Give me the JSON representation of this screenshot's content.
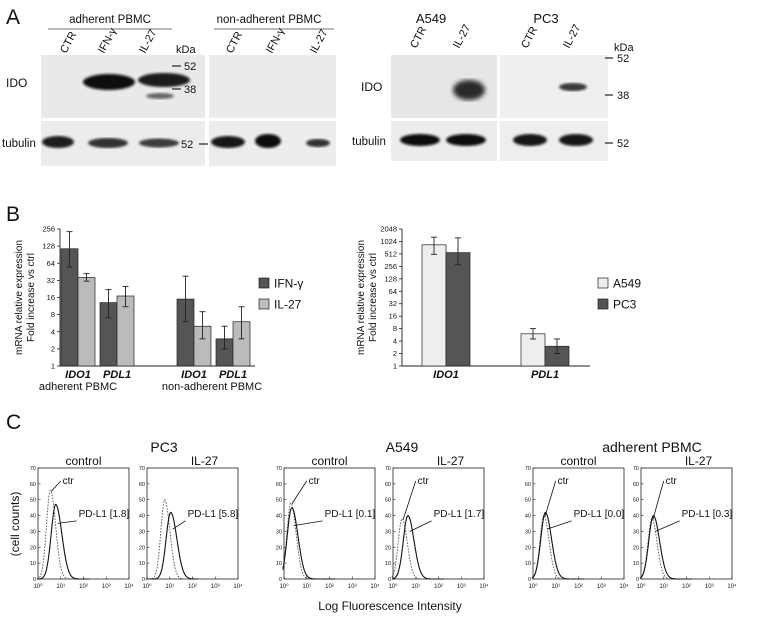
{
  "panels": {
    "a": "A",
    "b": "B",
    "c": "C"
  },
  "panel_a": {
    "blot1": {
      "group_left": "adherent PBMC",
      "group_right": "non-adherent PBMC",
      "lanes": [
        "CTR",
        "IFN-γ",
        "IL-27",
        "CTR",
        "IFN-γ",
        "IL-27"
      ],
      "row_labels": [
        "IDO",
        "tubulin"
      ],
      "kda_title": "kDa",
      "markers": [
        "52",
        "38",
        "52"
      ]
    },
    "blot2": {
      "group_left": "A549",
      "group_right": "PC3",
      "lanes": [
        "CTR",
        "IL-27",
        "CTR",
        "IL-27"
      ],
      "row_labels": [
        "IDO",
        "tubulin"
      ],
      "kda_title": "kDa",
      "markers": [
        "52",
        "38",
        "52"
      ]
    }
  },
  "chart_data": [
    {
      "type": "bar",
      "yscale": "log2",
      "ylabel": "mRNA relative expression\nFold increase vs ctrl",
      "yticks": [
        "1",
        "2",
        "4",
        "8",
        "16",
        "32",
        "64",
        "128",
        "256"
      ],
      "ylim": [
        1,
        256
      ],
      "categories": [
        "IDO1",
        "PDL1",
        "IDO1",
        "PDL1"
      ],
      "group_labels": [
        "adherent PBMC",
        "non-adherent PBMC"
      ],
      "series": [
        {
          "name": "IFN-γ",
          "color": "#555555",
          "values": [
            115,
            13,
            15,
            3
          ],
          "err": [
            [
              55,
              230
            ],
            [
              7,
              22
            ],
            [
              6,
              38
            ],
            [
              2,
              5
            ]
          ]
        },
        {
          "name": "IL-27",
          "color": "#bbbbbb",
          "values": [
            36,
            17,
            5,
            6
          ],
          "err": [
            [
              31,
              42
            ],
            [
              11,
              25
            ],
            [
              3,
              9
            ],
            [
              3,
              11
            ]
          ]
        }
      ],
      "legend": "right"
    },
    {
      "type": "bar",
      "yscale": "log2",
      "ylabel": "mRNA relative expression\nFold increase vs ctrl",
      "yticks": [
        "1",
        "2",
        "4",
        "8",
        "16",
        "32",
        "64",
        "128",
        "256",
        "512",
        "1024",
        "2048"
      ],
      "ylim": [
        1,
        2048
      ],
      "categories": [
        "IDO1",
        "PDL1"
      ],
      "series": [
        {
          "name": "A549",
          "color": "#eeeeee",
          "values": [
            850,
            6
          ],
          "err": [
            [
              500,
              1300
            ],
            [
              4.5,
              8
            ]
          ]
        },
        {
          "name": "PC3",
          "color": "#555555",
          "values": [
            550,
            3
          ],
          "err": [
            [
              280,
              1250
            ],
            [
              2,
              4.5
            ]
          ]
        }
      ],
      "legend": "right"
    },
    {
      "type": "histogram",
      "xscale": "log10",
      "xlabel": "Log Fluorescence Intensity",
      "ylabel": "(cell counts)",
      "yticks": [
        "0",
        "10",
        "20",
        "30",
        "40",
        "50",
        "60",
        "70"
      ],
      "ylim": [
        0,
        70
      ],
      "xticks": [
        "10⁰",
        "10¹",
        "10²",
        "10³",
        "10⁴"
      ],
      "xlim": [
        1,
        10000
      ],
      "groups": [
        {
          "title": "PC3",
          "panels": [
            {
              "subtitle": "control",
              "ctr_label": "ctr",
              "pdl1_label": "PD-L1 [1.8]",
              "ctr_peak": [
                3.5,
                56
              ],
              "pdl1_peak": [
                6,
                47
              ]
            },
            {
              "subtitle": "IL-27",
              "ctr_label": "",
              "pdl1_label": "PD-L1 [5.8]",
              "ctr_peak": [
                6,
                50
              ],
              "pdl1_peak": [
                11,
                42
              ]
            }
          ]
        },
        {
          "title": "A549",
          "panels": [
            {
              "subtitle": "control",
              "ctr_label": "ctr",
              "pdl1_label": "PD-L1 [0.1]",
              "ctr_peak": [
                2,
                48
              ],
              "pdl1_peak": [
                2.2,
                45
              ]
            },
            {
              "subtitle": "IL-27",
              "ctr_label": "ctr",
              "pdl1_label": "PD-L1 [1.7]",
              "ctr_peak": [
                2.5,
                38
              ],
              "pdl1_peak": [
                4.5,
                40
              ]
            }
          ]
        },
        {
          "title": "adherent PBMC",
          "panels": [
            {
              "subtitle": "control",
              "ctr_label": "ctr",
              "pdl1_label": "PD-L1 [0.0]",
              "ctr_peak": [
                3,
                40
              ],
              "pdl1_peak": [
                3.5,
                42
              ]
            },
            {
              "subtitle": "IL-27",
              "ctr_label": "ctr",
              "pdl1_label": "PD-L1 [0.3]",
              "ctr_peak": [
                3,
                38
              ],
              "pdl1_peak": [
                3.5,
                40
              ]
            }
          ]
        }
      ]
    }
  ]
}
